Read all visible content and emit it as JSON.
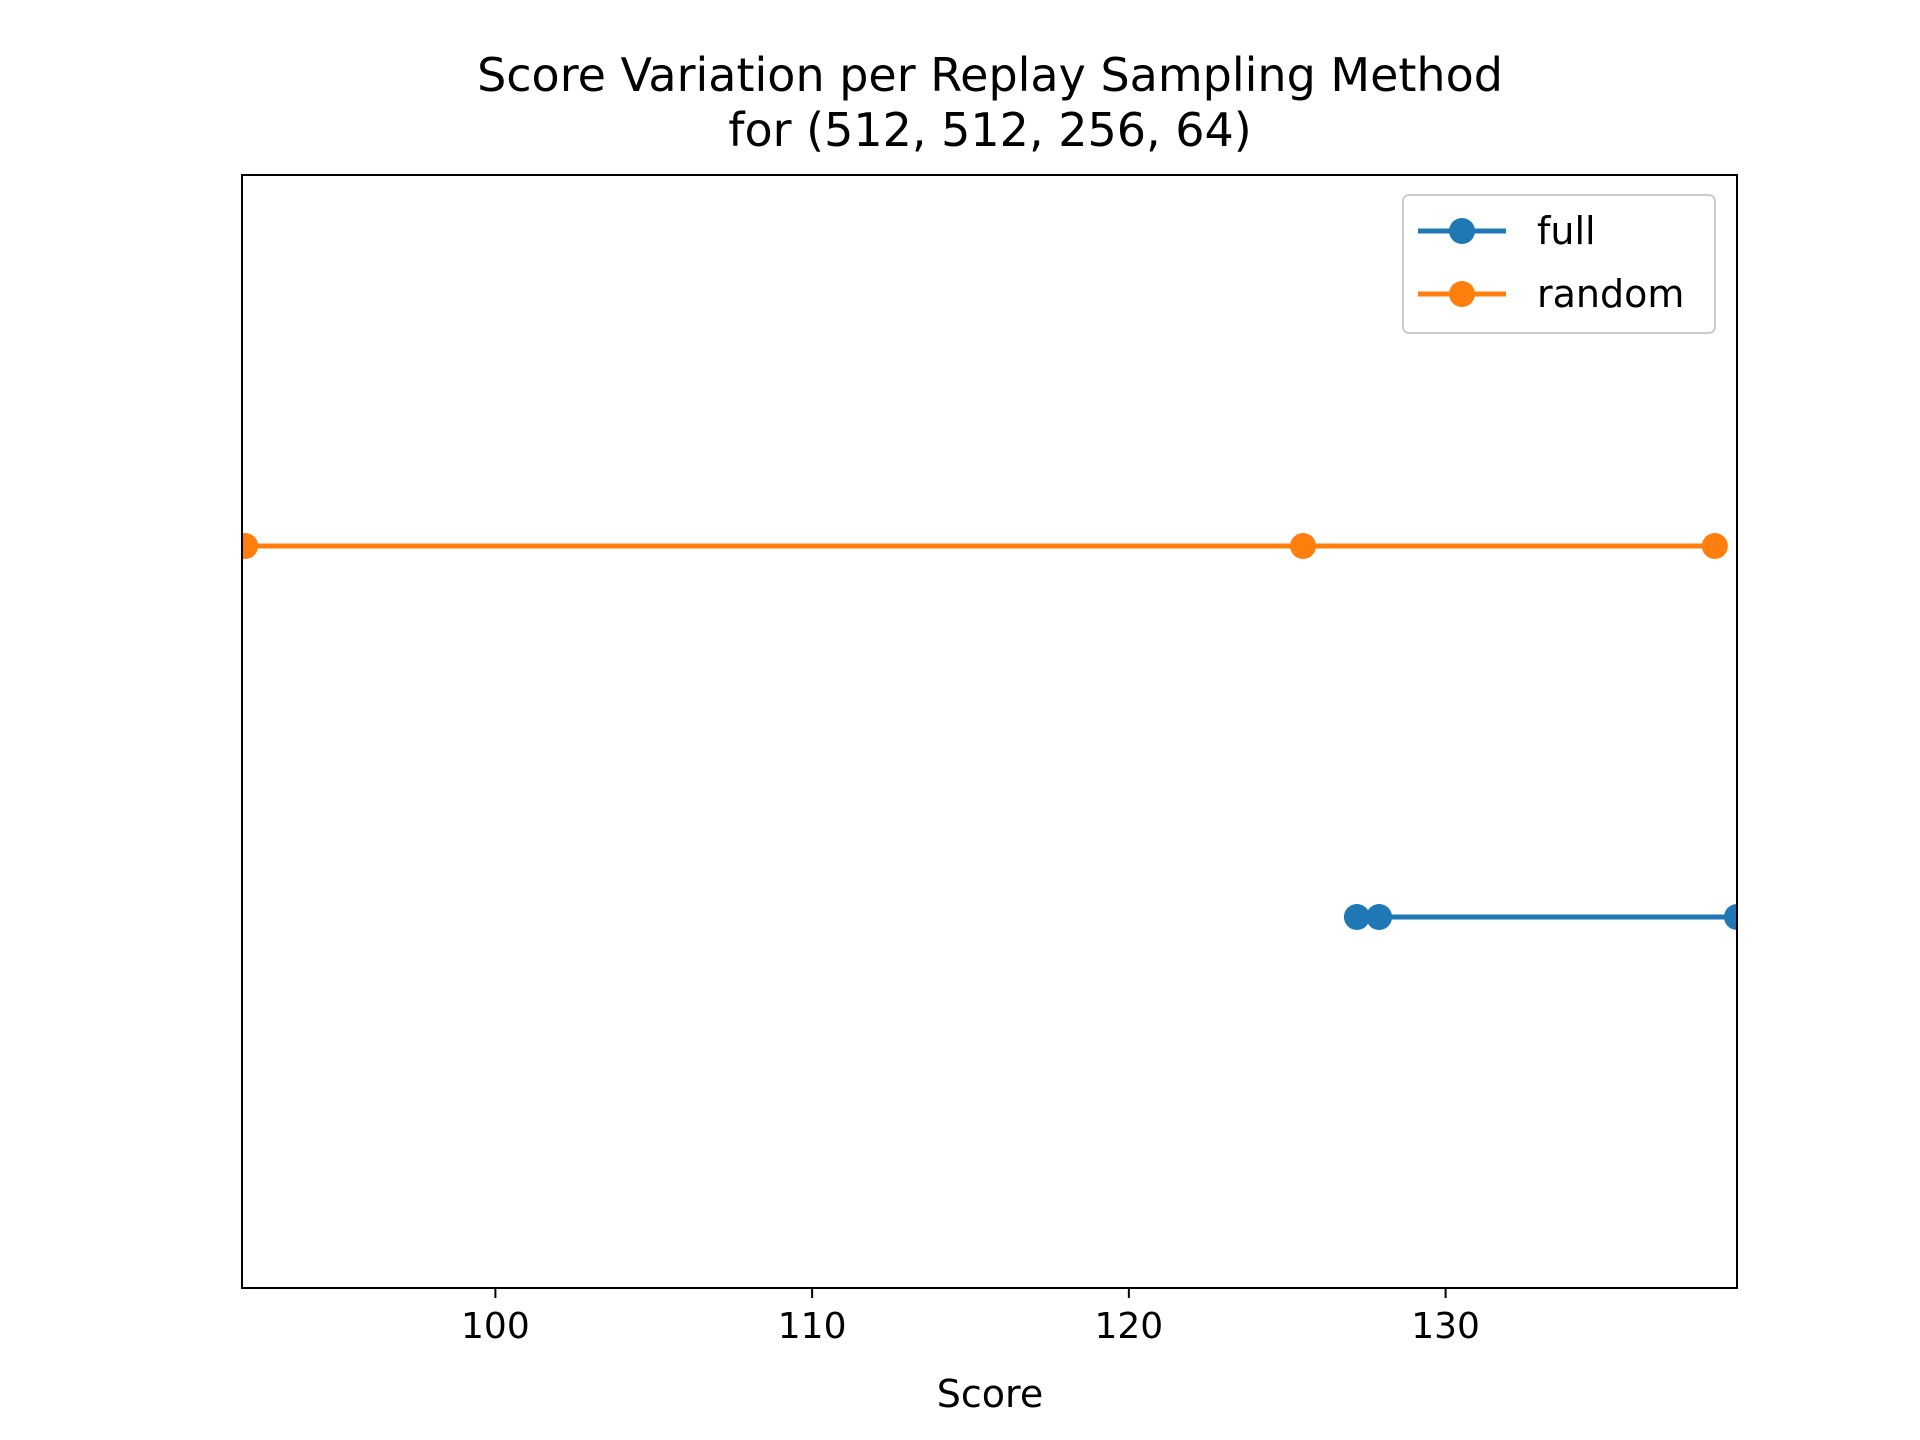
{
  "chart_data": {
    "type": "line",
    "title": "Score Variation per Replay Sampling Method",
    "subtitle": "for (512, 512, 256, 64)",
    "xlabel": "Score",
    "ylabel": "",
    "xlim": [
      92,
      139.2
    ],
    "x_ticks": [
      100,
      110,
      120,
      130
    ],
    "y_ticks_visible": false,
    "grid": false,
    "legend_position": "top-right",
    "series": [
      {
        "name": "full",
        "color": "#1f77b4",
        "y": 1,
        "x": [
          127.2,
          127.9,
          139.2
        ]
      },
      {
        "name": "random",
        "color": "#ff7f0e",
        "y": 2,
        "x": [
          92.1,
          125.5,
          138.5
        ]
      }
    ],
    "ylim": [
      0,
      3
    ]
  }
}
